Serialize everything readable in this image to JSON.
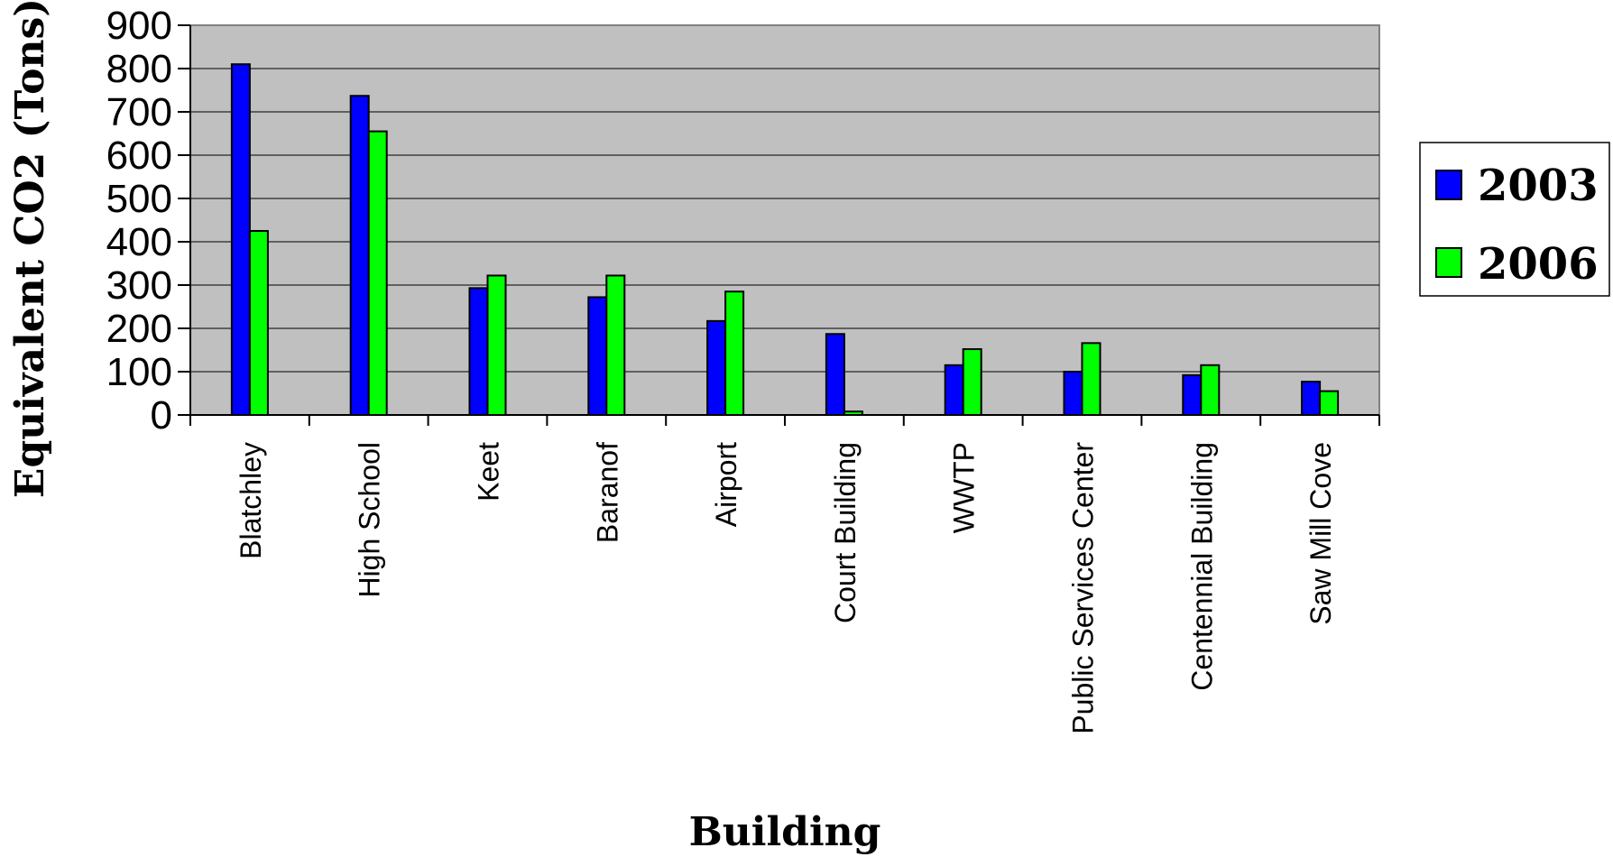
{
  "chart_data": {
    "type": "bar",
    "title": "",
    "xlabel": "Building",
    "ylabel": "Equivalent CO2 (Tons)",
    "ylim": [
      0,
      900
    ],
    "yticks": [
      0,
      100,
      200,
      300,
      400,
      500,
      600,
      700,
      800,
      900
    ],
    "grid": true,
    "legend_position": "right",
    "categories": [
      "Blatchley",
      "High School",
      "Keet",
      "Baranof",
      "Airport",
      "Court Building",
      "WWTP",
      "Public Services Center",
      "Centennial Building",
      "Saw Mill Cove"
    ],
    "series": [
      {
        "name": "2003",
        "color": "#0000ff",
        "values": [
          810,
          737,
          293,
          272,
          217,
          187,
          115,
          100,
          92,
          77
        ]
      },
      {
        "name": "2006",
        "color": "#00ff00",
        "values": [
          425,
          655,
          322,
          322,
          285,
          8,
          152,
          166,
          115,
          55
        ]
      }
    ],
    "plot_background": "#c0c0c0"
  }
}
